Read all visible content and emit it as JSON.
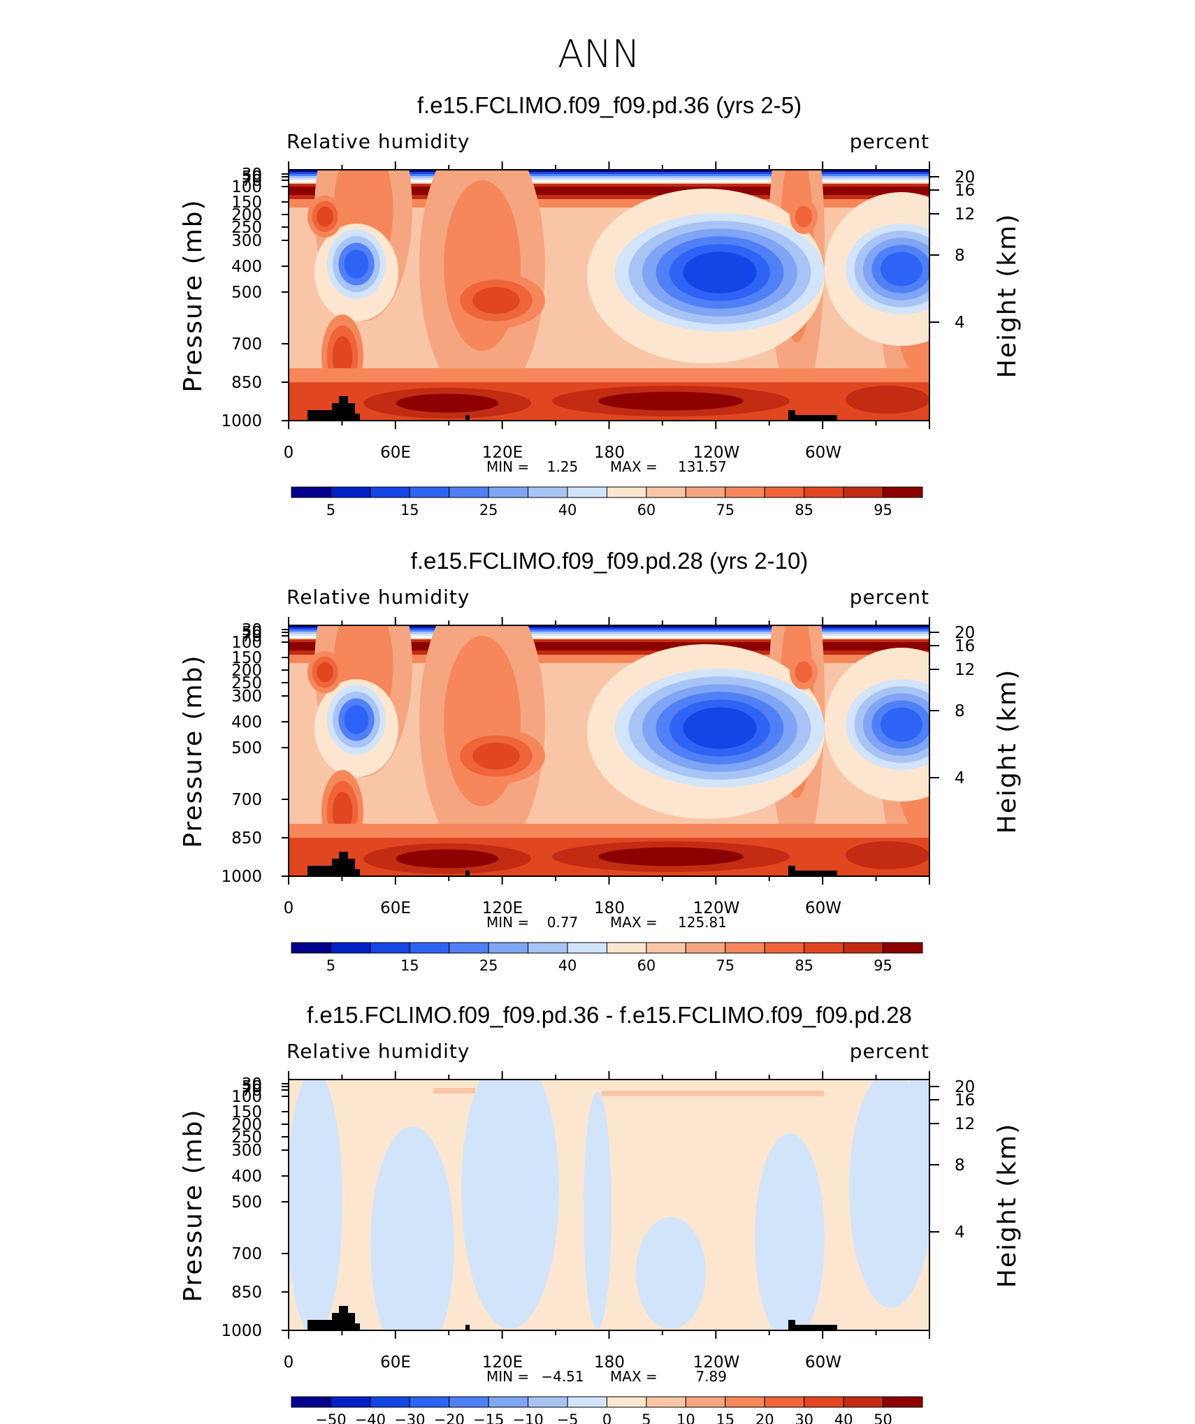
{
  "figure_title": "ANN",
  "colors": {
    "negative_scale": [
      "#00008c",
      "#0020c8",
      "#1446e6",
      "#2d64f5",
      "#5080f5",
      "#80a5f5",
      "#a8c4f5",
      "#d2e4fa"
    ],
    "positive_scale": [
      "#fde6d0",
      "#f8c6a6",
      "#f5a680",
      "#f5875a",
      "#f0643a",
      "#e04620",
      "#c22c12",
      "#8c0000"
    ]
  },
  "chart_data": [
    {
      "type": "heatmap",
      "title": "f.e15.FCLIMO.f09_f09.pd.36 (yrs 2-5)",
      "left_label": "Relative humidity",
      "right_label": "percent",
      "ylabel": "Pressure (mb)",
      "y2label": "Height (km)",
      "x_tick_labels": [
        "0",
        "60E",
        "120E",
        "180",
        "120W",
        "60W"
      ],
      "y_tick_labels": [
        "30",
        "50",
        "70",
        "100",
        "150",
        "200",
        "250",
        "300",
        "400",
        "500",
        "700",
        "850",
        "1000"
      ],
      "y2_tick_labels": [
        "20",
        "16",
        "12",
        "8",
        "4"
      ],
      "stats": {
        "min_label": "MIN =",
        "min": "1.25",
        "max_label": "MAX =",
        "max": "131.57"
      },
      "colorbar_labels": [
        "5",
        "15",
        "25",
        "40",
        "60",
        "75",
        "85",
        "95"
      ]
    },
    {
      "type": "heatmap",
      "title": "f.e15.FCLIMO.f09_f09.pd.28 (yrs 2-10)",
      "left_label": "Relative humidity",
      "right_label": "percent",
      "ylabel": "Pressure (mb)",
      "y2label": "Height (km)",
      "x_tick_labels": [
        "0",
        "60E",
        "120E",
        "180",
        "120W",
        "60W"
      ],
      "y_tick_labels": [
        "30",
        "50",
        "70",
        "100",
        "150",
        "200",
        "250",
        "300",
        "400",
        "500",
        "700",
        "850",
        "1000"
      ],
      "y2_tick_labels": [
        "20",
        "16",
        "12",
        "8",
        "4"
      ],
      "stats": {
        "min_label": "MIN =",
        "min": "0.77",
        "max_label": "MAX =",
        "max": "125.81"
      },
      "colorbar_labels": [
        "5",
        "15",
        "25",
        "40",
        "60",
        "75",
        "85",
        "95"
      ]
    },
    {
      "type": "heatmap",
      "title": "f.e15.FCLIMO.f09_f09.pd.36 - f.e15.FCLIMO.f09_f09.pd.28",
      "left_label": "Relative humidity",
      "right_label": "percent",
      "ylabel": "Pressure (mb)",
      "y2label": "Height (km)",
      "x_tick_labels": [
        "0",
        "60E",
        "120E",
        "180",
        "120W",
        "60W"
      ],
      "y_tick_labels": [
        "30",
        "50",
        "70",
        "100",
        "150",
        "200",
        "250",
        "300",
        "400",
        "500",
        "700",
        "850",
        "1000"
      ],
      "y2_tick_labels": [
        "20",
        "16",
        "12",
        "8",
        "4"
      ],
      "stats": {
        "min_label": "MIN =",
        "min": "−4.51",
        "max_label": "MAX =",
        "max": "7.89"
      },
      "colorbar_labels": [
        "−50",
        "−40",
        "−30",
        "−20",
        "−15",
        "−10",
        "−5",
        "0",
        "5",
        "10",
        "15",
        "20",
        "30",
        "40",
        "50"
      ]
    }
  ]
}
